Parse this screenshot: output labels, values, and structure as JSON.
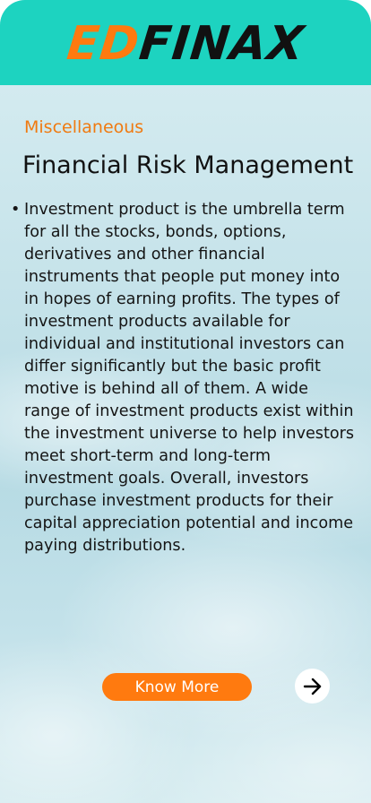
{
  "brand": {
    "logo_part1": "ED",
    "logo_part2": "FINAX",
    "accent_color": "#ff7a0f",
    "header_color": "#1dd3c0"
  },
  "article": {
    "category": "Miscellaneous",
    "title": "Financial Risk Management",
    "bullet": "•",
    "body": "Investment product is the umbrella term for all the stocks, bonds, options, derivatives and other financial instruments that people put money into in hopes of earning profits. The types of investment products available for individual and institutional investors can differ significantly but the basic profit motive is behind all of them. A wide range of investment products exist within the investment universe to help investors meet short-term and long-term investment goals. Overall, investors purchase investment products for their capital appreciation potential and income paying distributions."
  },
  "actions": {
    "know_more_label": "Know More",
    "next_icon": "arrow-right-icon"
  }
}
